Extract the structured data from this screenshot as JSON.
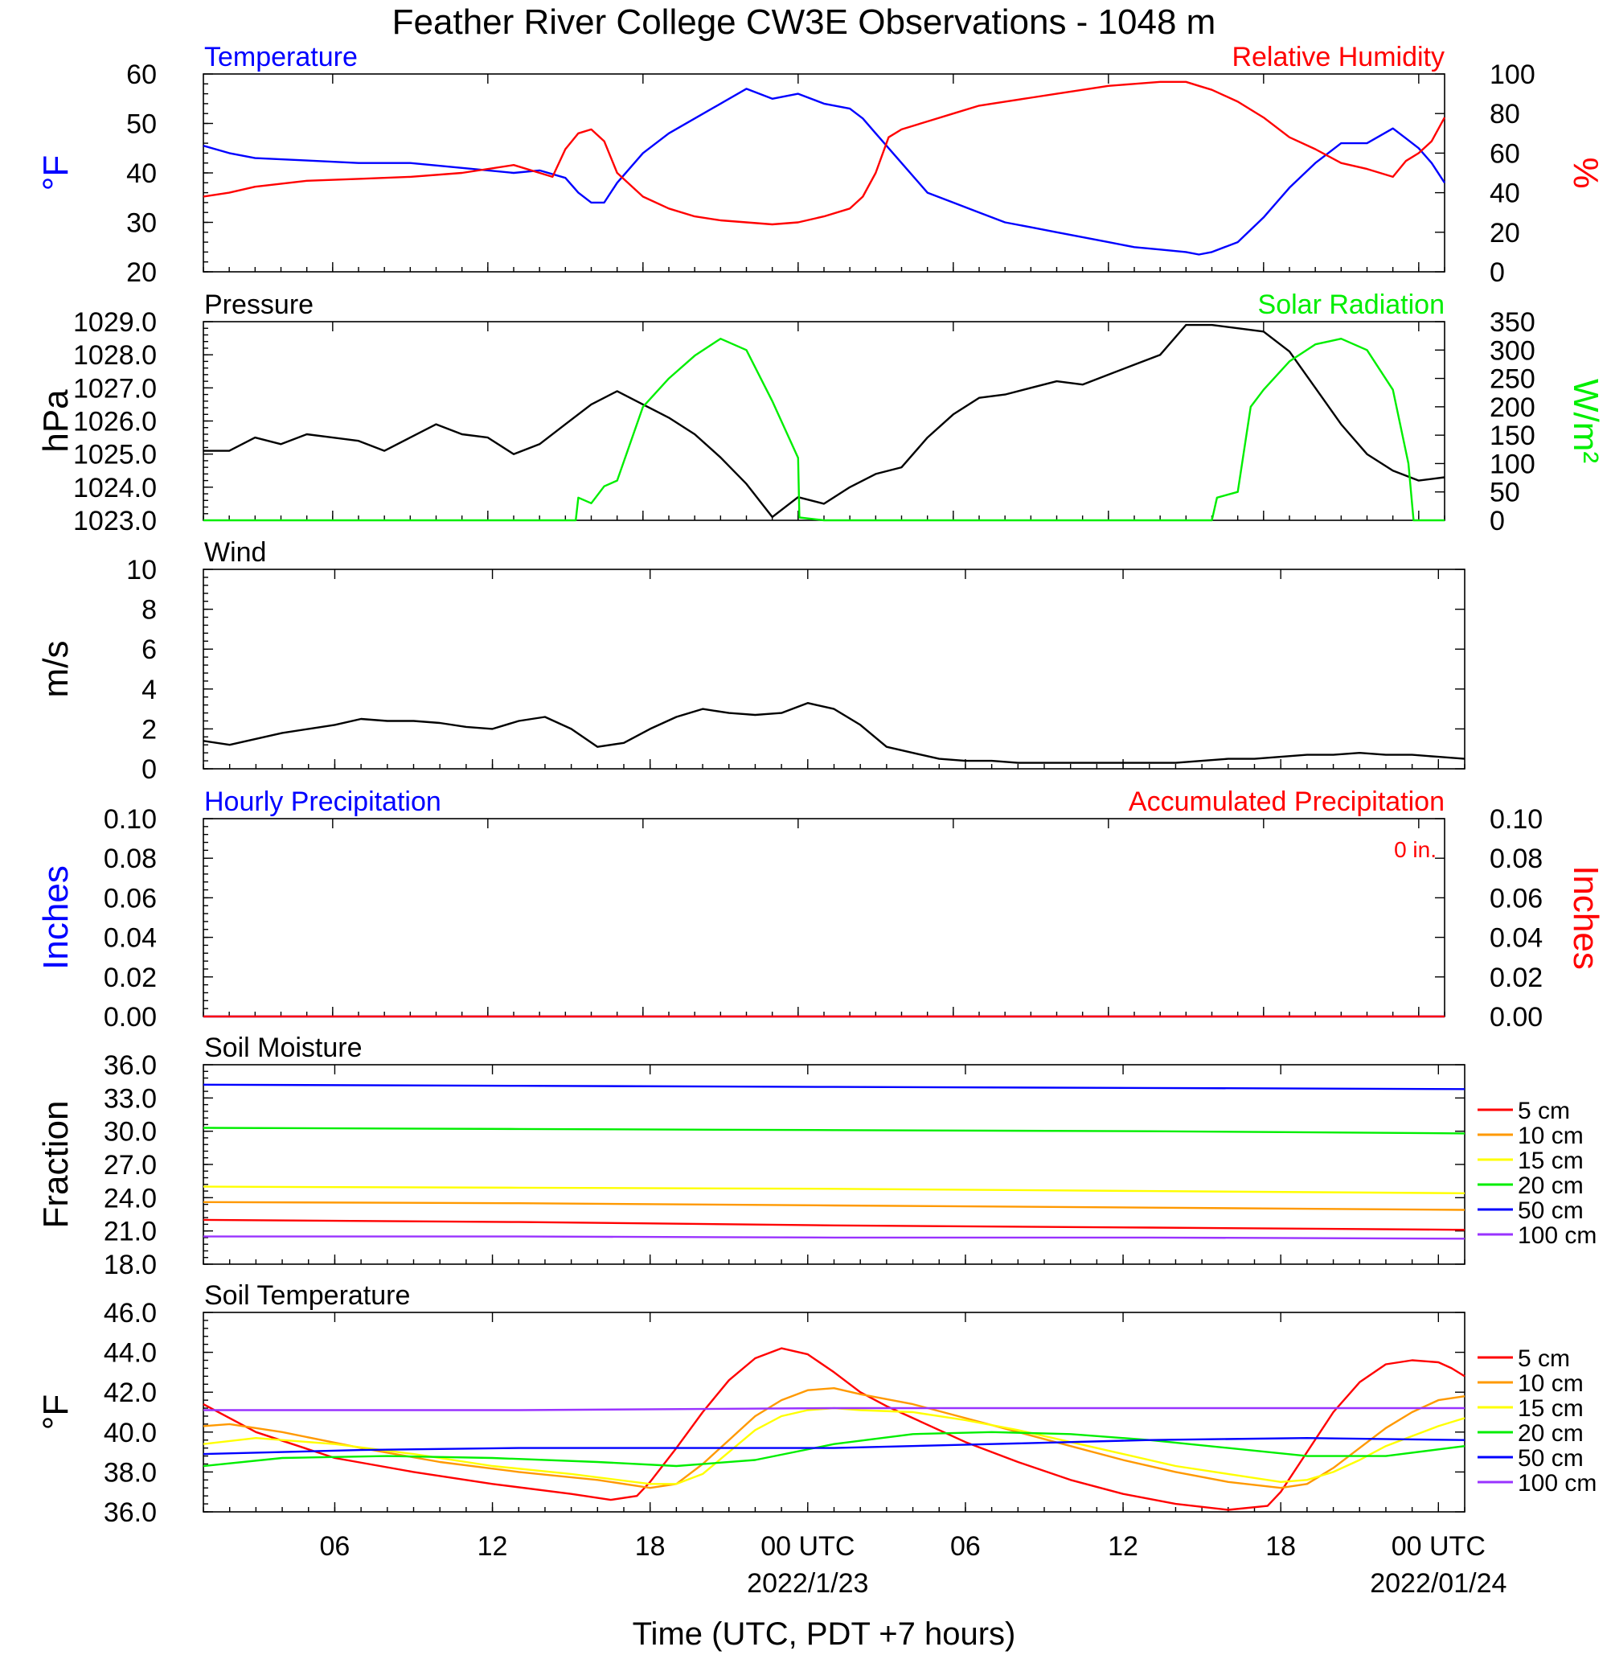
{
  "title": "Feather River College CW3E Observations - 1048 m",
  "x_axis": {
    "label": "Time (UTC, PDT +7 hours)",
    "ticks": [
      {
        "hour": 6,
        "label": "06",
        "date": ""
      },
      {
        "hour": 12,
        "label": "12",
        "date": ""
      },
      {
        "hour": 18,
        "label": "18",
        "date": ""
      },
      {
        "hour": 24,
        "label": "00 UTC",
        "date": "2022/1/23"
      },
      {
        "hour": 30,
        "label": "06",
        "date": ""
      },
      {
        "hour": 36,
        "label": "12",
        "date": ""
      },
      {
        "hour": 42,
        "label": "18",
        "date": ""
      },
      {
        "hour": 48,
        "label": "00 UTC",
        "date": "2022/01/24"
      }
    ],
    "xlim": [
      1,
      49
    ]
  },
  "colors": {
    "blue": "#0000ff",
    "red": "#ff0000",
    "green": "#00ee00",
    "black": "#000000",
    "orange": "#ff9900",
    "yellow": "#ffff00",
    "purple": "#9933ff"
  },
  "chart_data": [
    {
      "id": "temp",
      "type": "line",
      "left_title": "Temperature",
      "right_title": "Relative Humidity",
      "ylabel": "°F",
      "ylabel_right": "%",
      "ylim": [
        20,
        60
      ],
      "yticks": [
        "20",
        "30",
        "40",
        "50",
        "60"
      ],
      "ylim_right": [
        0,
        100
      ],
      "yticks_right": [
        "0",
        "20",
        "40",
        "60",
        "80",
        "100"
      ],
      "series": [
        {
          "axis": "left",
          "color": "blue",
          "x": [
            1,
            2,
            3,
            5,
            7,
            9,
            11,
            13,
            14,
            15,
            15.5,
            16,
            16.5,
            17,
            18,
            19,
            20,
            21,
            22,
            23,
            24,
            25,
            26,
            26.5,
            27,
            28,
            29,
            30,
            31,
            32,
            33,
            34,
            35,
            36,
            37,
            38,
            39,
            39.5,
            40,
            41,
            42,
            43,
            44,
            45,
            46,
            47,
            47.5,
            48,
            48.5,
            49
          ],
          "y": [
            45.5,
            44,
            43,
            42.5,
            42,
            42,
            41,
            40,
            40.5,
            39,
            36,
            34,
            34,
            38,
            44,
            48,
            51,
            54,
            57,
            55,
            56,
            54,
            53,
            51,
            48,
            42,
            36,
            34,
            32,
            30,
            29,
            28,
            27,
            26,
            25,
            24.5,
            24,
            23.5,
            24,
            26,
            31,
            37,
            42,
            46,
            46,
            49,
            47,
            45,
            42,
            38
          ]
        },
        {
          "axis": "right",
          "color": "red",
          "x": [
            1,
            2,
            3,
            5,
            7,
            9,
            11,
            13,
            14,
            14.5,
            15,
            15.5,
            16,
            16.5,
            17,
            18,
            19,
            20,
            21,
            22,
            23,
            24,
            25,
            26,
            26.5,
            27,
            27.5,
            28,
            29,
            30,
            31,
            32,
            33,
            34,
            35,
            36,
            37,
            38,
            39,
            39.5,
            40,
            41,
            42,
            43,
            44,
            45,
            46,
            47,
            47.5,
            48,
            48.5,
            49
          ],
          "y": [
            38,
            40,
            43,
            46,
            47,
            48,
            50,
            54,
            50,
            48,
            62,
            70,
            72,
            66,
            50,
            38,
            32,
            28,
            26,
            25,
            24,
            25,
            28,
            32,
            38,
            50,
            68,
            72,
            76,
            80,
            84,
            86,
            88,
            90,
            92,
            94,
            95,
            96,
            96,
            94,
            92,
            86,
            78,
            68,
            62,
            55,
            52,
            48,
            56,
            60,
            66,
            78
          ]
        }
      ]
    },
    {
      "id": "pressure",
      "type": "line",
      "left_title": "Pressure",
      "right_title": "Solar Radiation",
      "ylabel": "hPa",
      "ylabel_right": "W/m²",
      "ylim": [
        1023,
        1029
      ],
      "yticks": [
        "1023.0",
        "1024.0",
        "1025.0",
        "1026.0",
        "1027.0",
        "1028.0",
        "1029.0"
      ],
      "ylim_right": [
        0,
        350
      ],
      "yticks_right": [
        "0",
        "50",
        "100",
        "150",
        "200",
        "250",
        "300",
        "350"
      ],
      "series": [
        {
          "axis": "left",
          "color": "black",
          "x": [
            1,
            2,
            3,
            4,
            5,
            6,
            7,
            8,
            9,
            10,
            11,
            12,
            13,
            14,
            15,
            16,
            17,
            18,
            19,
            20,
            21,
            22,
            23,
            24,
            25,
            26,
            27,
            28,
            29,
            30,
            31,
            32,
            33,
            34,
            35,
            36,
            37,
            38,
            39,
            40,
            41,
            42,
            43,
            44,
            45,
            46,
            47,
            48,
            49
          ],
          "y": [
            1025.1,
            1025.1,
            1025.5,
            1025.3,
            1025.6,
            1025.5,
            1025.4,
            1025.1,
            1025.5,
            1025.9,
            1025.6,
            1025.5,
            1025.0,
            1025.3,
            1025.9,
            1026.5,
            1026.9,
            1026.5,
            1026.1,
            1025.6,
            1024.9,
            1024.1,
            1023.1,
            1023.7,
            1023.5,
            1024.0,
            1024.4,
            1024.6,
            1025.5,
            1026.2,
            1026.7,
            1026.8,
            1027.0,
            1027.2,
            1027.1,
            1027.4,
            1027.7,
            1028.0,
            1028.9,
            1028.9,
            1028.8,
            1028.7,
            1028.1,
            1027.0,
            1025.9,
            1025.0,
            1024.5,
            1024.2,
            1024.3
          ]
        },
        {
          "axis": "right",
          "color": "green",
          "x": [
            1,
            15.4,
            15.5,
            16,
            16.5,
            17,
            18,
            19,
            20,
            21,
            22,
            23,
            24,
            24.05,
            25,
            40,
            40.2,
            41,
            41.5,
            42,
            43,
            44,
            45,
            46,
            47,
            47.6,
            47.8,
            49
          ],
          "y": [
            0,
            0,
            40,
            30,
            60,
            70,
            200,
            250,
            290,
            320,
            300,
            210,
            110,
            5,
            0,
            0,
            40,
            50,
            200,
            230,
            280,
            310,
            320,
            300,
            230,
            100,
            0,
            0
          ]
        }
      ]
    },
    {
      "id": "wind",
      "type": "line",
      "left_title": "Wind",
      "right_title": "",
      "ylabel": "m/s",
      "ylim": [
        0,
        10
      ],
      "yticks": [
        "0",
        "2",
        "4",
        "6",
        "8",
        "10"
      ],
      "series": [
        {
          "axis": "left",
          "color": "black",
          "x": [
            1,
            2,
            3,
            4,
            5,
            6,
            7,
            8,
            9,
            10,
            11,
            12,
            13,
            14,
            15,
            16,
            17,
            18,
            19,
            20,
            21,
            22,
            23,
            24,
            25,
            26,
            27,
            28,
            29,
            30,
            31,
            32,
            33,
            34,
            35,
            36,
            37,
            38,
            39,
            40,
            41,
            42,
            43,
            44,
            45,
            46,
            47,
            48,
            49
          ],
          "y": [
            1.4,
            1.2,
            1.5,
            1.8,
            2.0,
            2.2,
            2.5,
            2.4,
            2.4,
            2.3,
            2.1,
            2.0,
            2.4,
            2.6,
            2.0,
            1.1,
            1.3,
            2.0,
            2.6,
            3.0,
            2.8,
            2.7,
            2.8,
            3.3,
            3.0,
            2.2,
            1.1,
            0.8,
            0.5,
            0.4,
            0.4,
            0.3,
            0.3,
            0.3,
            0.3,
            0.3,
            0.3,
            0.3,
            0.4,
            0.5,
            0.5,
            0.6,
            0.7,
            0.7,
            0.8,
            0.7,
            0.7,
            0.6,
            0.5
          ]
        }
      ]
    },
    {
      "id": "precip",
      "type": "line",
      "left_title": "Hourly Precipitation",
      "right_title": "Accumulated Precipitation",
      "annotation": "0 in.",
      "ylabel": "Inches",
      "ylabel_right": "Inches",
      "ylim": [
        0,
        0.1
      ],
      "yticks": [
        "0.00",
        "0.02",
        "0.04",
        "0.06",
        "0.08",
        "0.10"
      ],
      "ylim_right": [
        0,
        0.1
      ],
      "yticks_right": [
        "0.00",
        "0.02",
        "0.04",
        "0.06",
        "0.08",
        "0.10"
      ],
      "series": [
        {
          "axis": "left",
          "color": "blue",
          "x": [
            1,
            49
          ],
          "y": [
            0,
            0
          ]
        },
        {
          "axis": "right",
          "color": "red",
          "x": [
            1,
            49
          ],
          "y": [
            0,
            0
          ]
        }
      ]
    },
    {
      "id": "soilm",
      "type": "line",
      "left_title": "Soil Moisture",
      "right_title": "",
      "ylabel": "Fraction",
      "ylim": [
        18,
        36
      ],
      "yticks": [
        "18.0",
        "21.0",
        "24.0",
        "27.0",
        "30.0",
        "33.0",
        "36.0"
      ],
      "legend": [
        "5 cm",
        "10 cm",
        "15 cm",
        "20 cm",
        "50 cm",
        "100 cm"
      ],
      "series": [
        {
          "name": "5 cm",
          "color": "red",
          "x": [
            1,
            13,
            25,
            37,
            49
          ],
          "y": [
            22.0,
            21.8,
            21.5,
            21.3,
            21.1
          ]
        },
        {
          "name": "10 cm",
          "color": "orange",
          "x": [
            1,
            13,
            25,
            37,
            49
          ],
          "y": [
            23.6,
            23.5,
            23.3,
            23.1,
            22.9
          ]
        },
        {
          "name": "15 cm",
          "color": "yellow",
          "x": [
            1,
            13,
            25,
            37,
            49
          ],
          "y": [
            25.0,
            24.9,
            24.8,
            24.6,
            24.4
          ]
        },
        {
          "name": "20 cm",
          "color": "green",
          "x": [
            1,
            13,
            25,
            37,
            49
          ],
          "y": [
            30.3,
            30.2,
            30.1,
            30.0,
            29.8
          ]
        },
        {
          "name": "50 cm",
          "color": "blue",
          "x": [
            1,
            13,
            25,
            37,
            49
          ],
          "y": [
            34.2,
            34.1,
            34.0,
            33.9,
            33.8
          ]
        },
        {
          "name": "100 cm",
          "color": "purple",
          "x": [
            1,
            13,
            25,
            37,
            49
          ],
          "y": [
            20.5,
            20.5,
            20.4,
            20.4,
            20.3
          ]
        }
      ]
    },
    {
      "id": "soilt",
      "type": "line",
      "left_title": "Soil Temperature",
      "right_title": "",
      "ylabel": "°F",
      "ylim": [
        36,
        46
      ],
      "yticks": [
        "36.0",
        "38.0",
        "40.0",
        "42.0",
        "44.0",
        "46.0"
      ],
      "legend": [
        "5 cm",
        "10 cm",
        "15 cm",
        "20 cm",
        "50 cm",
        "100 cm"
      ],
      "series": [
        {
          "name": "5 cm",
          "color": "red",
          "x": [
            1,
            3,
            6,
            9,
            12,
            15,
            16.5,
            17.5,
            18,
            19,
            20,
            21,
            22,
            23,
            24,
            25,
            26,
            27,
            28,
            29,
            30,
            32,
            34,
            36,
            38,
            40,
            41.5,
            42,
            43,
            44,
            45,
            46,
            47,
            48,
            48.5,
            49
          ],
          "y": [
            41.4,
            40.0,
            38.7,
            38.0,
            37.4,
            36.9,
            36.6,
            36.8,
            37.5,
            39.2,
            41.0,
            42.6,
            43.7,
            44.2,
            43.9,
            43.0,
            42.0,
            41.3,
            40.7,
            40.1,
            39.5,
            38.5,
            37.6,
            36.9,
            36.4,
            36.1,
            36.3,
            37.0,
            39.0,
            41.0,
            42.5,
            43.4,
            43.6,
            43.5,
            43.2,
            42.8
          ]
        },
        {
          "name": "10 cm",
          "color": "orange",
          "x": [
            1,
            2,
            4,
            7,
            10,
            13,
            16,
            18,
            19,
            20,
            21,
            22,
            23,
            24,
            25,
            26,
            28,
            30,
            32,
            34,
            36,
            38,
            40,
            42,
            43,
            44,
            45,
            46,
            47,
            48,
            49
          ],
          "y": [
            40.3,
            40.4,
            40.0,
            39.2,
            38.5,
            38.0,
            37.6,
            37.2,
            37.4,
            38.4,
            39.6,
            40.8,
            41.6,
            42.1,
            42.2,
            41.9,
            41.4,
            40.7,
            40.0,
            39.3,
            38.6,
            38.0,
            37.5,
            37.2,
            37.4,
            38.2,
            39.2,
            40.2,
            41.0,
            41.6,
            41.8
          ]
        },
        {
          "name": "15 cm",
          "color": "yellow",
          "x": [
            1,
            3,
            6,
            9,
            12,
            15,
            18,
            19,
            20,
            21,
            22,
            23,
            24,
            25,
            26,
            28,
            30,
            32,
            34,
            36,
            38,
            40,
            42,
            43,
            44,
            45,
            46,
            47,
            48,
            49
          ],
          "y": [
            39.4,
            39.7,
            39.4,
            38.9,
            38.3,
            37.9,
            37.4,
            37.4,
            37.9,
            39.0,
            40.1,
            40.8,
            41.1,
            41.2,
            41.1,
            41.0,
            40.6,
            40.1,
            39.5,
            38.9,
            38.3,
            37.9,
            37.5,
            37.6,
            38.0,
            38.6,
            39.3,
            39.8,
            40.3,
            40.7
          ]
        },
        {
          "name": "20 cm",
          "color": "green",
          "x": [
            1,
            4,
            8,
            12,
            16,
            19,
            22,
            25,
            28,
            31,
            34,
            37,
            40,
            43,
            46,
            49
          ],
          "y": [
            38.3,
            38.7,
            38.8,
            38.7,
            38.5,
            38.3,
            38.6,
            39.4,
            39.9,
            40.0,
            39.9,
            39.6,
            39.2,
            38.8,
            38.8,
            39.3
          ]
        },
        {
          "name": "50 cm",
          "color": "blue",
          "x": [
            1,
            7,
            13,
            19,
            25,
            31,
            37,
            43,
            49
          ],
          "y": [
            38.9,
            39.1,
            39.2,
            39.2,
            39.2,
            39.4,
            39.6,
            39.7,
            39.6
          ]
        },
        {
          "name": "100 cm",
          "color": "purple",
          "x": [
            1,
            13,
            25,
            37,
            49
          ],
          "y": [
            41.1,
            41.1,
            41.2,
            41.2,
            41.2
          ]
        }
      ]
    }
  ]
}
